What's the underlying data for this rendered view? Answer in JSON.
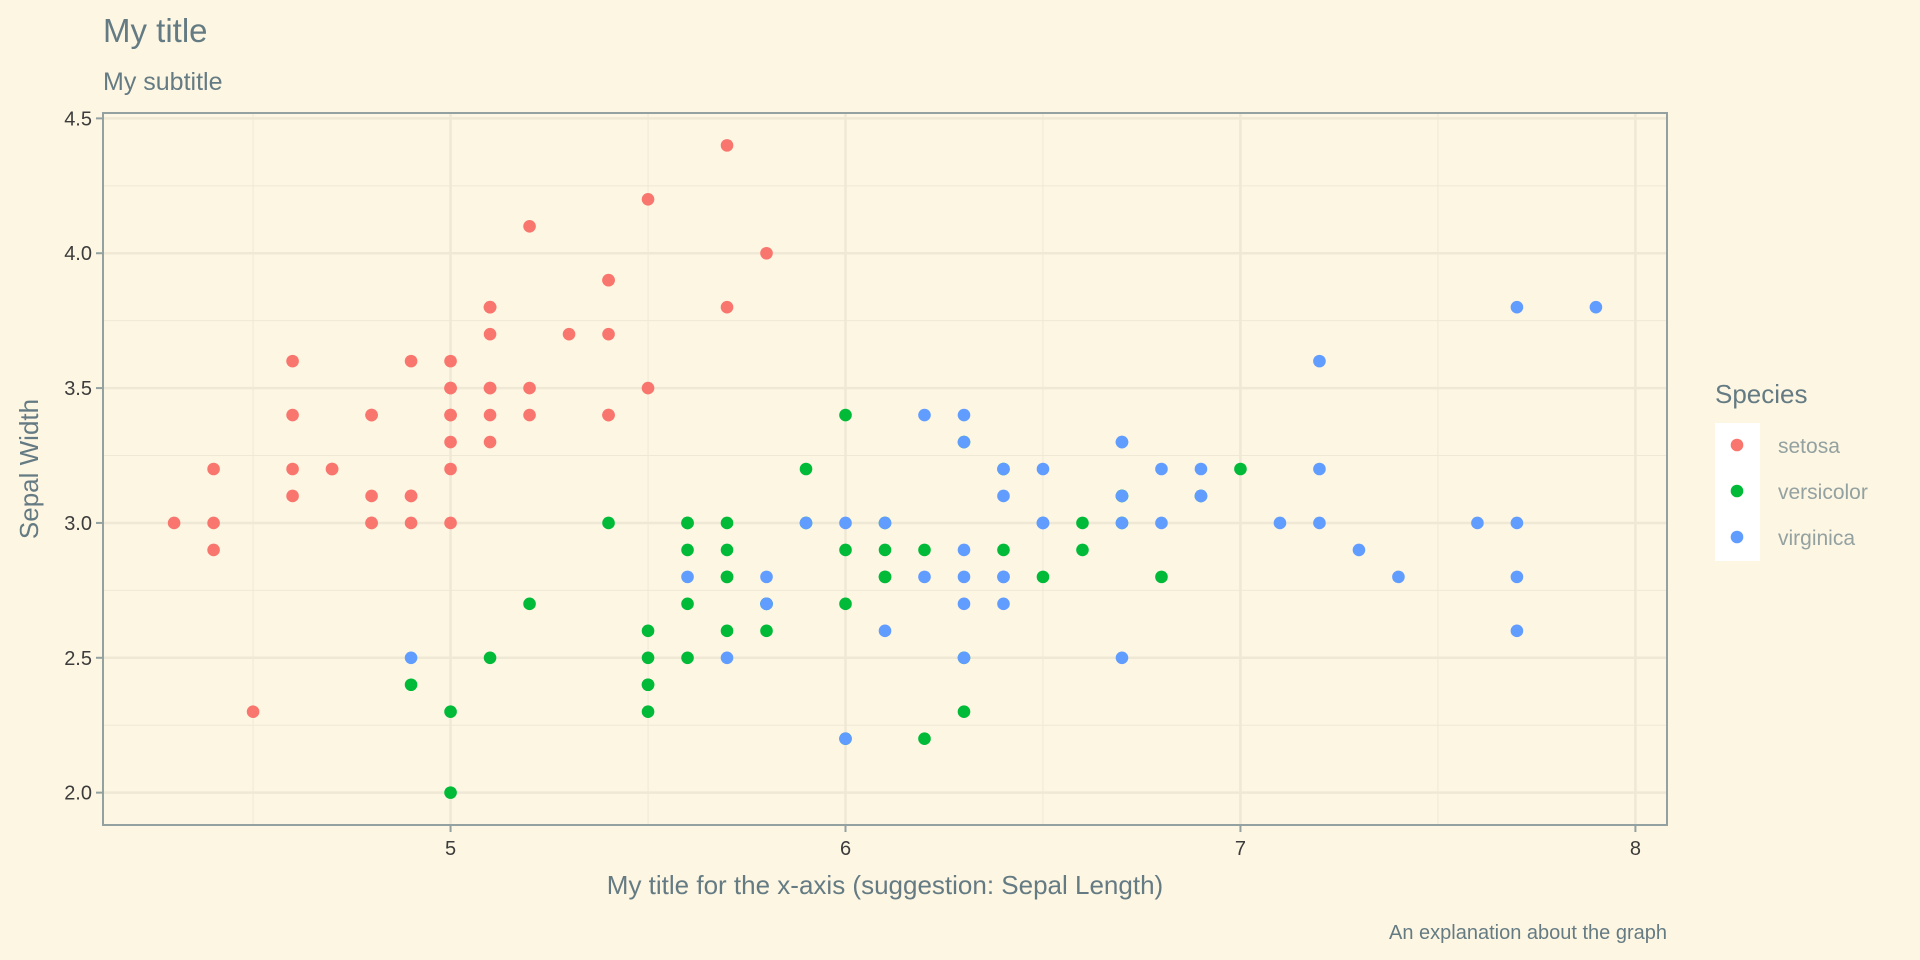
{
  "chart_data": {
    "type": "scatter",
    "title": "My title",
    "subtitle": "My subtitle",
    "xlabel": "My title for the x-axis (suggestion: Sepal Length)",
    "ylabel": "Sepal Width",
    "caption": "An explanation about the graph",
    "xlim": [
      4.12,
      8.08
    ],
    "ylim": [
      1.88,
      4.52
    ],
    "xticks": [
      5,
      6,
      7,
      8
    ],
    "xtick_labels": [
      "5",
      "6",
      "7",
      "8"
    ],
    "yticks": [
      2.0,
      2.5,
      3.0,
      3.5,
      4.0,
      4.5
    ],
    "ytick_labels": [
      "2.0",
      "2.5",
      "3.0",
      "3.5",
      "4.0",
      "4.5"
    ],
    "grid": true,
    "legend": {
      "title": "Species",
      "placement": "right"
    },
    "series": [
      {
        "name": "setosa",
        "color": "#F8766D",
        "x": [
          5.1,
          4.9,
          4.7,
          4.6,
          5.0,
          5.4,
          4.6,
          5.0,
          4.4,
          4.9,
          5.4,
          4.8,
          4.8,
          4.3,
          5.8,
          5.7,
          5.4,
          5.1,
          5.7,
          5.1,
          5.4,
          5.1,
          4.6,
          5.1,
          4.8,
          5.0,
          5.0,
          5.2,
          5.2,
          4.7,
          4.8,
          5.4,
          5.2,
          5.5,
          4.9,
          5.0,
          5.5,
          4.9,
          4.4,
          5.1,
          5.0,
          4.5,
          4.4,
          5.0,
          5.1,
          4.8,
          5.1,
          4.6,
          5.3,
          5.0
        ],
        "y": [
          3.5,
          3.0,
          3.2,
          3.1,
          3.6,
          3.9,
          3.4,
          3.4,
          2.9,
          3.1,
          3.7,
          3.4,
          3.0,
          3.0,
          4.0,
          4.4,
          3.9,
          3.5,
          3.8,
          3.8,
          3.4,
          3.7,
          3.6,
          3.3,
          3.4,
          3.0,
          3.4,
          3.5,
          3.4,
          3.2,
          3.1,
          3.4,
          4.1,
          4.2,
          3.1,
          3.2,
          3.5,
          3.6,
          3.0,
          3.4,
          3.5,
          2.3,
          3.2,
          3.5,
          3.8,
          3.0,
          3.8,
          3.2,
          3.7,
          3.3
        ]
      },
      {
        "name": "versicolor",
        "color": "#00BA38",
        "x": [
          7.0,
          6.4,
          6.9,
          5.5,
          6.5,
          5.7,
          6.3,
          4.9,
          6.6,
          5.2,
          5.0,
          5.9,
          6.0,
          6.1,
          5.6,
          6.7,
          5.6,
          5.8,
          6.2,
          5.6,
          5.9,
          6.1,
          6.3,
          6.1,
          6.4,
          6.6,
          6.8,
          6.7,
          6.0,
          5.7,
          5.5,
          5.5,
          5.8,
          6.0,
          5.4,
          6.0,
          6.7,
          6.3,
          5.6,
          5.5,
          5.5,
          6.1,
          5.8,
          5.0,
          5.6,
          5.7,
          5.7,
          6.2,
          5.1,
          5.7
        ],
        "y": [
          3.2,
          3.2,
          3.1,
          2.3,
          2.8,
          2.8,
          3.3,
          2.4,
          2.9,
          2.7,
          2.0,
          3.0,
          2.2,
          2.9,
          2.9,
          3.1,
          3.0,
          2.7,
          2.2,
          2.5,
          3.2,
          2.8,
          2.5,
          2.8,
          2.9,
          3.0,
          2.8,
          3.0,
          2.9,
          2.6,
          2.4,
          2.4,
          2.7,
          2.7,
          3.0,
          3.4,
          3.1,
          2.3,
          3.0,
          2.5,
          2.6,
          3.0,
          2.6,
          2.3,
          2.7,
          3.0,
          2.9,
          2.9,
          2.5,
          2.8
        ]
      },
      {
        "name": "virginica",
        "color": "#619CFF",
        "x": [
          6.3,
          5.8,
          7.1,
          6.3,
          6.5,
          7.6,
          4.9,
          7.3,
          6.7,
          7.2,
          6.5,
          6.4,
          6.8,
          5.7,
          5.8,
          6.4,
          6.5,
          7.7,
          7.7,
          6.0,
          6.9,
          5.6,
          7.7,
          6.3,
          6.7,
          7.2,
          6.2,
          6.1,
          6.4,
          7.2,
          7.4,
          7.9,
          6.4,
          6.3,
          6.1,
          7.7,
          6.3,
          6.4,
          6.0,
          6.9,
          6.7,
          6.9,
          5.8,
          6.8,
          6.7,
          6.7,
          6.3,
          6.5,
          6.2,
          5.9
        ],
        "y": [
          3.3,
          2.7,
          3.0,
          2.9,
          3.0,
          3.0,
          2.5,
          2.9,
          2.5,
          3.6,
          3.2,
          2.7,
          3.0,
          2.5,
          2.8,
          3.2,
          3.0,
          3.8,
          2.6,
          2.2,
          3.2,
          2.8,
          2.8,
          2.7,
          3.3,
          3.2,
          2.8,
          3.0,
          2.8,
          3.0,
          2.8,
          3.8,
          2.8,
          2.8,
          2.6,
          3.0,
          3.4,
          3.1,
          3.0,
          3.1,
          3.1,
          3.1,
          2.7,
          3.2,
          3.3,
          3.0,
          2.5,
          3.0,
          3.4,
          3.0
        ]
      }
    ]
  }
}
